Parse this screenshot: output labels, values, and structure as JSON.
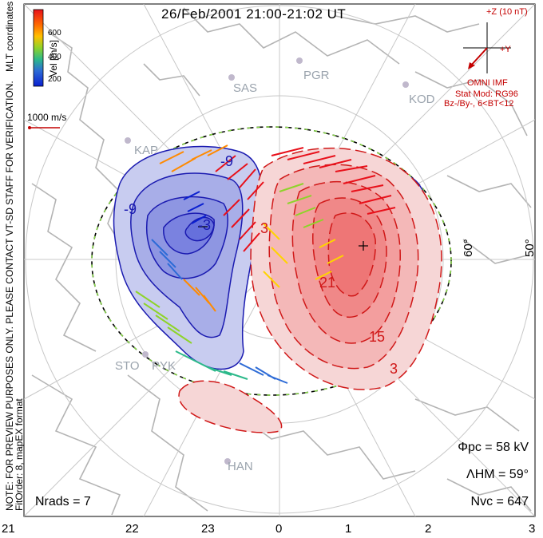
{
  "title": "26/Feb/2001 21:00-21:02 UT",
  "colorbar": {
    "label": "Vel [m/s]",
    "ticks": [
      "600",
      "400",
      "200"
    ],
    "colors": [
      "#e8101a",
      "#ff8a00",
      "#ffd400",
      "#8ed32a",
      "#2cb98a",
      "#2d6bd6",
      "#0a1fd0"
    ]
  },
  "scale_label": "1000 m/s",
  "side_notes": {
    "mlt": "MLT coordinates",
    "note": "NOTE: FOR PREVIEW PURPOSES ONLY. PLEASE CONTACT VT-SD STAFF FOR VERIFICATION.",
    "fitorder": "FitOrder: 8, mapEX format"
  },
  "imf": {
    "z_label": "+Z (10 nT)",
    "y_label": "+Y",
    "source": "OMNI IMF",
    "model": "Stat Mod: RG96",
    "condition": "Bz-/By-, 6<BT<12"
  },
  "stats": {
    "phi": "Φpc = 58 kV",
    "lambda": "ΛHM = 59°",
    "nvc": "Nvc = 647",
    "nrads": "Nrads = 7"
  },
  "mlt_ticks": [
    "21",
    "22",
    "23",
    "0",
    "1",
    "2",
    "3"
  ],
  "lat_labels": [
    "60°",
    "50°"
  ],
  "sites": [
    "SAS",
    "PGR",
    "KOD",
    "KAP",
    "STO",
    "PYK",
    "HAN"
  ],
  "contour_labels": [
    "-9",
    "-9",
    "3",
    "-3",
    "21",
    "15",
    "3"
  ],
  "colors": {
    "negative": "#1a1ab0",
    "negative_fill": "#7a82e0",
    "positive": "#d01818",
    "positive_fill": "#f08080",
    "coast": "#b4b4b4",
    "grid": "#c8c8c8",
    "boundary_dash": "#88dd44"
  }
}
